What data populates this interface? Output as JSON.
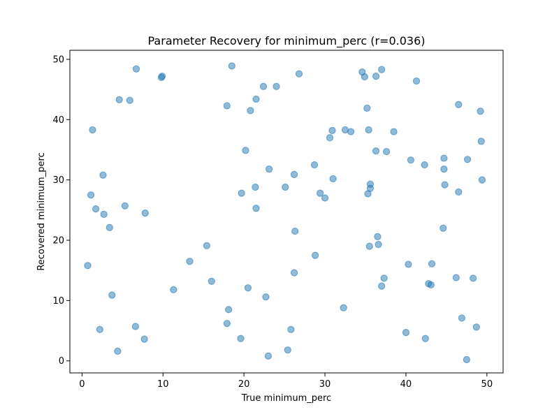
{
  "chart_data": {
    "type": "scatter",
    "title": "Parameter Recovery for minimum_perc (r=0.036)",
    "xlabel": "True minimum_perc",
    "ylabel": "Recovered minimum_perc",
    "xlim": [
      -1.5,
      52
    ],
    "ylim": [
      -2,
      51.5
    ],
    "xticks": [
      0,
      10,
      20,
      30,
      40,
      50
    ],
    "yticks": [
      0,
      10,
      20,
      30,
      40,
      50
    ],
    "grid": false,
    "marker_color": "#1f77b4",
    "marker_alpha": 0.5,
    "points": [
      {
        "x": 0.7,
        "y": 15.8
      },
      {
        "x": 1.1,
        "y": 27.5
      },
      {
        "x": 1.3,
        "y": 38.3
      },
      {
        "x": 1.7,
        "y": 25.2
      },
      {
        "x": 2.2,
        "y": 5.2
      },
      {
        "x": 2.6,
        "y": 30.8
      },
      {
        "x": 2.7,
        "y": 24.3
      },
      {
        "x": 3.4,
        "y": 22.1
      },
      {
        "x": 3.7,
        "y": 10.9
      },
      {
        "x": 4.4,
        "y": 1.6
      },
      {
        "x": 4.6,
        "y": 43.3
      },
      {
        "x": 5.3,
        "y": 25.7
      },
      {
        "x": 5.9,
        "y": 43.2
      },
      {
        "x": 6.6,
        "y": 5.7
      },
      {
        "x": 6.7,
        "y": 48.4
      },
      {
        "x": 7.7,
        "y": 3.6
      },
      {
        "x": 7.8,
        "y": 24.5
      },
      {
        "x": 9.8,
        "y": 47.0
      },
      {
        "x": 9.9,
        "y": 47.2
      },
      {
        "x": 11.3,
        "y": 11.8
      },
      {
        "x": 13.3,
        "y": 16.5
      },
      {
        "x": 15.4,
        "y": 19.1
      },
      {
        "x": 16.0,
        "y": 13.2
      },
      {
        "x": 17.9,
        "y": 42.3
      },
      {
        "x": 17.9,
        "y": 6.2
      },
      {
        "x": 18.1,
        "y": 8.5
      },
      {
        "x": 18.5,
        "y": 48.9
      },
      {
        "x": 19.6,
        "y": 3.7
      },
      {
        "x": 19.7,
        "y": 27.8
      },
      {
        "x": 20.2,
        "y": 34.9
      },
      {
        "x": 20.5,
        "y": 12.1
      },
      {
        "x": 20.8,
        "y": 41.5
      },
      {
        "x": 21.4,
        "y": 28.8
      },
      {
        "x": 21.5,
        "y": 43.4
      },
      {
        "x": 21.5,
        "y": 25.3
      },
      {
        "x": 22.4,
        "y": 45.5
      },
      {
        "x": 22.7,
        "y": 10.6
      },
      {
        "x": 23.0,
        "y": 0.8
      },
      {
        "x": 23.1,
        "y": 31.8
      },
      {
        "x": 24.0,
        "y": 45.5
      },
      {
        "x": 25.1,
        "y": 28.8
      },
      {
        "x": 25.4,
        "y": 1.8
      },
      {
        "x": 25.8,
        "y": 5.2
      },
      {
        "x": 26.2,
        "y": 30.9
      },
      {
        "x": 26.2,
        "y": 14.6
      },
      {
        "x": 26.3,
        "y": 21.5
      },
      {
        "x": 26.8,
        "y": 47.6
      },
      {
        "x": 28.7,
        "y": 32.5
      },
      {
        "x": 28.8,
        "y": 17.5
      },
      {
        "x": 29.4,
        "y": 27.8
      },
      {
        "x": 30.0,
        "y": 27.0
      },
      {
        "x": 30.6,
        "y": 37.0
      },
      {
        "x": 30.9,
        "y": 38.2
      },
      {
        "x": 31.0,
        "y": 30.2
      },
      {
        "x": 32.3,
        "y": 8.8
      },
      {
        "x": 32.5,
        "y": 38.3
      },
      {
        "x": 33.2,
        "y": 38.0
      },
      {
        "x": 34.6,
        "y": 47.9
      },
      {
        "x": 34.9,
        "y": 47.1
      },
      {
        "x": 35.2,
        "y": 41.9
      },
      {
        "x": 35.3,
        "y": 27.7
      },
      {
        "x": 35.4,
        "y": 38.3
      },
      {
        "x": 35.5,
        "y": 19.0
      },
      {
        "x": 35.6,
        "y": 29.3
      },
      {
        "x": 35.6,
        "y": 28.6
      },
      {
        "x": 36.3,
        "y": 47.2
      },
      {
        "x": 36.3,
        "y": 34.8
      },
      {
        "x": 36.5,
        "y": 20.6
      },
      {
        "x": 36.6,
        "y": 19.3
      },
      {
        "x": 37.0,
        "y": 12.4
      },
      {
        "x": 37.0,
        "y": 48.3
      },
      {
        "x": 37.3,
        "y": 13.7
      },
      {
        "x": 37.6,
        "y": 34.7
      },
      {
        "x": 38.5,
        "y": 38.0
      },
      {
        "x": 40.0,
        "y": 4.7
      },
      {
        "x": 40.3,
        "y": 16.0
      },
      {
        "x": 40.6,
        "y": 33.3
      },
      {
        "x": 41.3,
        "y": 46.4
      },
      {
        "x": 42.3,
        "y": 32.5
      },
      {
        "x": 42.4,
        "y": 3.7
      },
      {
        "x": 42.8,
        "y": 12.8
      },
      {
        "x": 43.1,
        "y": 12.6
      },
      {
        "x": 43.2,
        "y": 16.1
      },
      {
        "x": 44.6,
        "y": 22.0
      },
      {
        "x": 44.7,
        "y": 33.6
      },
      {
        "x": 44.7,
        "y": 31.8
      },
      {
        "x": 44.8,
        "y": 29.2
      },
      {
        "x": 46.2,
        "y": 13.8
      },
      {
        "x": 46.5,
        "y": 42.5
      },
      {
        "x": 46.5,
        "y": 28.0
      },
      {
        "x": 46.9,
        "y": 7.1
      },
      {
        "x": 47.5,
        "y": 0.2
      },
      {
        "x": 47.6,
        "y": 33.4
      },
      {
        "x": 48.3,
        "y": 13.7
      },
      {
        "x": 48.7,
        "y": 5.6
      },
      {
        "x": 49.2,
        "y": 41.4
      },
      {
        "x": 49.3,
        "y": 36.4
      },
      {
        "x": 49.4,
        "y": 30.0
      }
    ]
  }
}
